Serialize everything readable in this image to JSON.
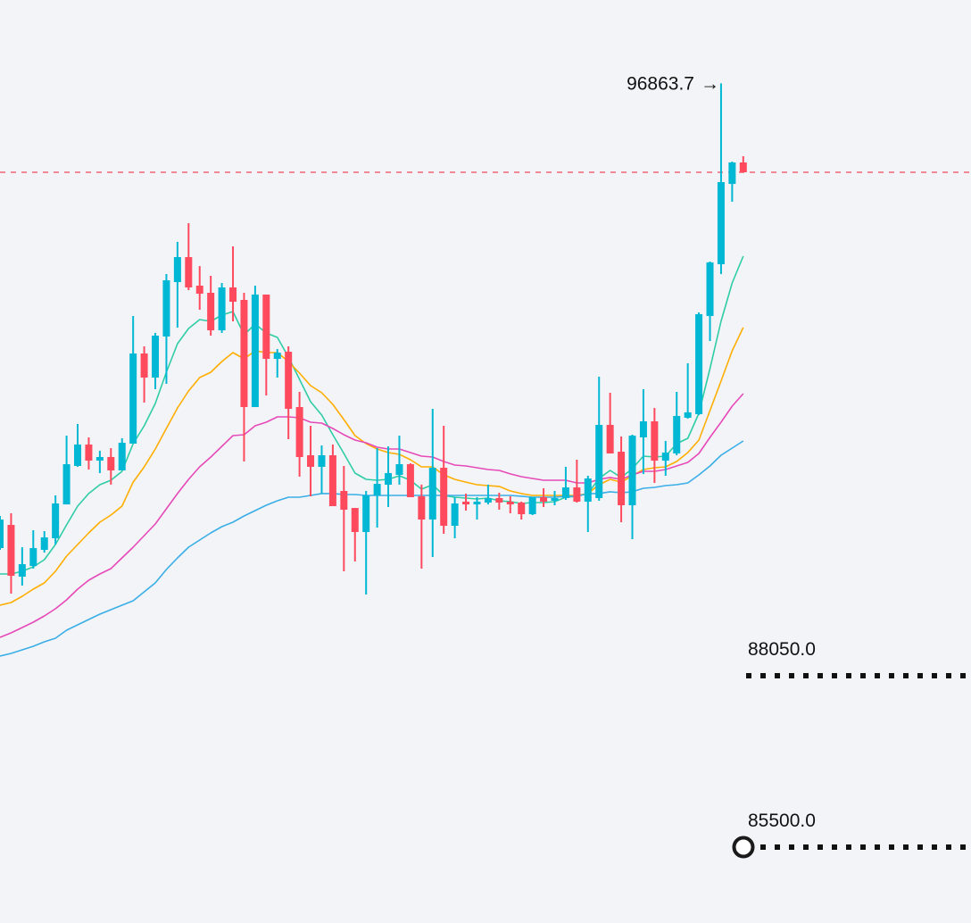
{
  "chart_data": {
    "type": "candlestick",
    "title": "",
    "colors": {
      "up": "#00b8d4",
      "down": "#ff4a5e",
      "current_price_line": "#f2495c",
      "ma1": "#2ecda6",
      "ma2": "#ffae00",
      "ma3": "#e64ab8",
      "ma4": "#3aaee6",
      "background": "#f3f4f8"
    },
    "current_price": 95540,
    "high_annotation": {
      "value": 96863.7,
      "label": "96863.7",
      "arrow": "→"
    },
    "levels": [
      {
        "value": 88050,
        "label": "88050.0",
        "marker": "none"
      },
      {
        "value": 85500,
        "label": "85500.0",
        "marker": "circle"
      }
    ],
    "candles": [
      [
        89949,
        90374,
        90427,
        89923
      ],
      [
        90294,
        89537,
        90467,
        89272
      ],
      [
        89524,
        89710,
        89962,
        89391
      ],
      [
        89683,
        89949,
        90215,
        89644
      ],
      [
        89923,
        90108,
        90201,
        89883
      ],
      [
        90095,
        90613,
        90733,
        90002
      ],
      [
        90599,
        91197,
        91622,
        90599
      ],
      [
        91171,
        91490,
        91795,
        91158
      ],
      [
        91490,
        91250,
        91596,
        91118
      ],
      [
        91250,
        91304,
        91397,
        91065
      ],
      [
        91304,
        91105,
        91436,
        90893
      ],
      [
        91105,
        91516,
        91583,
        91105
      ],
      [
        91503,
        92844,
        93402,
        91503
      ],
      [
        92844,
        92486,
        92950,
        92114
      ],
      [
        92486,
        93110,
        93150,
        92313
      ],
      [
        93097,
        93933,
        94026,
        92393
      ],
      [
        93906,
        94278,
        94504,
        93229
      ],
      [
        94278,
        93827,
        94783,
        93787
      ],
      [
        93853,
        93734,
        94145,
        93495
      ],
      [
        93747,
        93189,
        93999,
        93110
      ],
      [
        93189,
        93827,
        93893,
        93150
      ],
      [
        93827,
        93614,
        94438,
        93322
      ],
      [
        93641,
        92047,
        93747,
        91237
      ],
      [
        92047,
        93721,
        93853,
        92047
      ],
      [
        93721,
        92764,
        93721,
        92220
      ],
      [
        92764,
        92857,
        92910,
        92486
      ],
      [
        92870,
        92021,
        92950,
        91569
      ],
      [
        92047,
        91304,
        92273,
        91012
      ],
      [
        91330,
        91158,
        91768,
        90720
      ],
      [
        91158,
        91330,
        91476,
        90760
      ],
      [
        91330,
        90573,
        91490,
        90573
      ],
      [
        90799,
        90520,
        91171,
        89604
      ],
      [
        90546,
        90188,
        90546,
        89750
      ],
      [
        90188,
        90733,
        90799,
        89258
      ],
      [
        90733,
        90905,
        91436,
        90254
      ],
      [
        90892,
        91065,
        91463,
        90560
      ],
      [
        91038,
        91197,
        91622,
        90893
      ],
      [
        91197,
        90706,
        91211,
        90706
      ],
      [
        90720,
        90374,
        90893,
        89644
      ],
      [
        90374,
        91144,
        92021,
        89816
      ],
      [
        91144,
        90281,
        91768,
        90162
      ],
      [
        90281,
        90613,
        90706,
        90095
      ],
      [
        90640,
        90599,
        90760,
        90507
      ],
      [
        90599,
        90640,
        90706,
        90374
      ],
      [
        90626,
        90693,
        90893,
        90599
      ],
      [
        90693,
        90626,
        90773,
        90520
      ],
      [
        90640,
        90599,
        90720,
        90467
      ],
      [
        90626,
        90453,
        90640,
        90374
      ],
      [
        90453,
        90706,
        90706,
        90440
      ],
      [
        90706,
        90640,
        90839,
        90560
      ],
      [
        90653,
        90693,
        90799,
        90586
      ],
      [
        90693,
        90852,
        91158,
        90666
      ],
      [
        90852,
        90640,
        91264,
        90626
      ],
      [
        90640,
        90985,
        91025,
        90188
      ],
      [
        90693,
        91782,
        92499,
        90653
      ],
      [
        91782,
        91357,
        92260,
        91357
      ],
      [
        91383,
        90586,
        91609,
        90334
      ],
      [
        90586,
        91622,
        91636,
        90082
      ],
      [
        91596,
        91835,
        92313,
        91051
      ],
      [
        91835,
        91250,
        92034,
        90919
      ],
      [
        91250,
        91370,
        91543,
        91025
      ],
      [
        91357,
        91915,
        92273,
        91330
      ],
      [
        91888,
        91968,
        92698,
        91875
      ],
      [
        91941,
        93429,
        93455,
        91928
      ],
      [
        93402,
        94199,
        94212,
        93030
      ],
      [
        94172,
        95394,
        96863.7,
        94026
      ],
      [
        95367,
        95686,
        95699,
        95102
      ],
      [
        95686,
        95540,
        95779,
        95540
      ]
    ],
    "candle_format": [
      "open",
      "close",
      "high",
      "low"
    ],
    "moving_averages": [
      {
        "name": "ma1",
        "values": [
          89564,
          89564,
          89604,
          89670,
          89776,
          90002,
          90294,
          90573,
          90760,
          90892,
          90959,
          91091,
          91503,
          91768,
          92101,
          92565,
          92990,
          93216,
          93349,
          93322,
          93415,
          93468,
          93123,
          93282,
          93150,
          93083,
          92791,
          92459,
          92127,
          91928,
          91636,
          91357,
          91065,
          90972,
          90959,
          90972,
          91025,
          90959,
          90826,
          90892,
          90733,
          90706,
          90693,
          90680,
          90693,
          90653,
          90640,
          90613,
          90626,
          90626,
          90640,
          90706,
          90720,
          90760,
          90985,
          91105,
          90999,
          91131,
          91317,
          91304,
          91317,
          91503,
          91583,
          91955,
          92618,
          93322,
          93893,
          94291
        ]
      },
      {
        "name": "ma2",
        "values": [
          89099,
          89139,
          89232,
          89338,
          89431,
          89604,
          89829,
          90002,
          90175,
          90334,
          90440,
          90573,
          90931,
          91158,
          91423,
          91729,
          92034,
          92287,
          92486,
          92565,
          92725,
          92857,
          92764,
          92884,
          92857,
          92857,
          92725,
          92552,
          92366,
          92260,
          92087,
          91861,
          91622,
          91503,
          91423,
          91370,
          91344,
          91264,
          91158,
          91158,
          91038,
          90972,
          90931,
          90892,
          90879,
          90867,
          90799,
          90760,
          90733,
          90733,
          90733,
          90733,
          90733,
          90760,
          90892,
          90972,
          90931,
          91025,
          91118,
          91144,
          91158,
          91237,
          91370,
          91556,
          91994,
          92433,
          92884,
          93230
        ]
      },
      {
        "name": "ma3",
        "values": [
          88621,
          88688,
          88767,
          88847,
          88940,
          89046,
          89179,
          89338,
          89471,
          89564,
          89644,
          89803,
          89962,
          90135,
          90308,
          90533,
          90760,
          90972,
          91158,
          91304,
          91463,
          91622,
          91636,
          91768,
          91821,
          91901,
          91901,
          91888,
          91821,
          91808,
          91729,
          91636,
          91556,
          91516,
          91450,
          91423,
          91423,
          91370,
          91317,
          91304,
          91237,
          91184,
          91171,
          91144,
          91118,
          91105,
          91052,
          91012,
          90985,
          90959,
          90959,
          90959,
          90919,
          90919,
          90972,
          90999,
          90972,
          91038,
          91091,
          91091,
          91118,
          91171,
          91224,
          91357,
          91596,
          91821,
          92061,
          92247
        ]
      },
      {
        "name": "ma4",
        "values": [
          88342,
          88382,
          88435,
          88488,
          88555,
          88608,
          88727,
          88807,
          88887,
          88967,
          89033,
          89099,
          89166,
          89298,
          89431,
          89630,
          89803,
          89962,
          90069,
          90175,
          90268,
          90334,
          90427,
          90507,
          90586,
          90653,
          90706,
          90706,
          90733,
          90760,
          90760,
          90746,
          90746,
          90733,
          90733,
          90733,
          90733,
          90733,
          90733,
          90733,
          90733,
          90733,
          90733,
          90733,
          90733,
          90733,
          90733,
          90720,
          90706,
          90706,
          90706,
          90720,
          90720,
          90760,
          90760,
          90787,
          90773,
          90787,
          90839,
          90852,
          90879,
          90892,
          90919,
          91038,
          91171,
          91330,
          91436,
          91543
        ]
      }
    ],
    "grid": false,
    "legend": "none"
  }
}
